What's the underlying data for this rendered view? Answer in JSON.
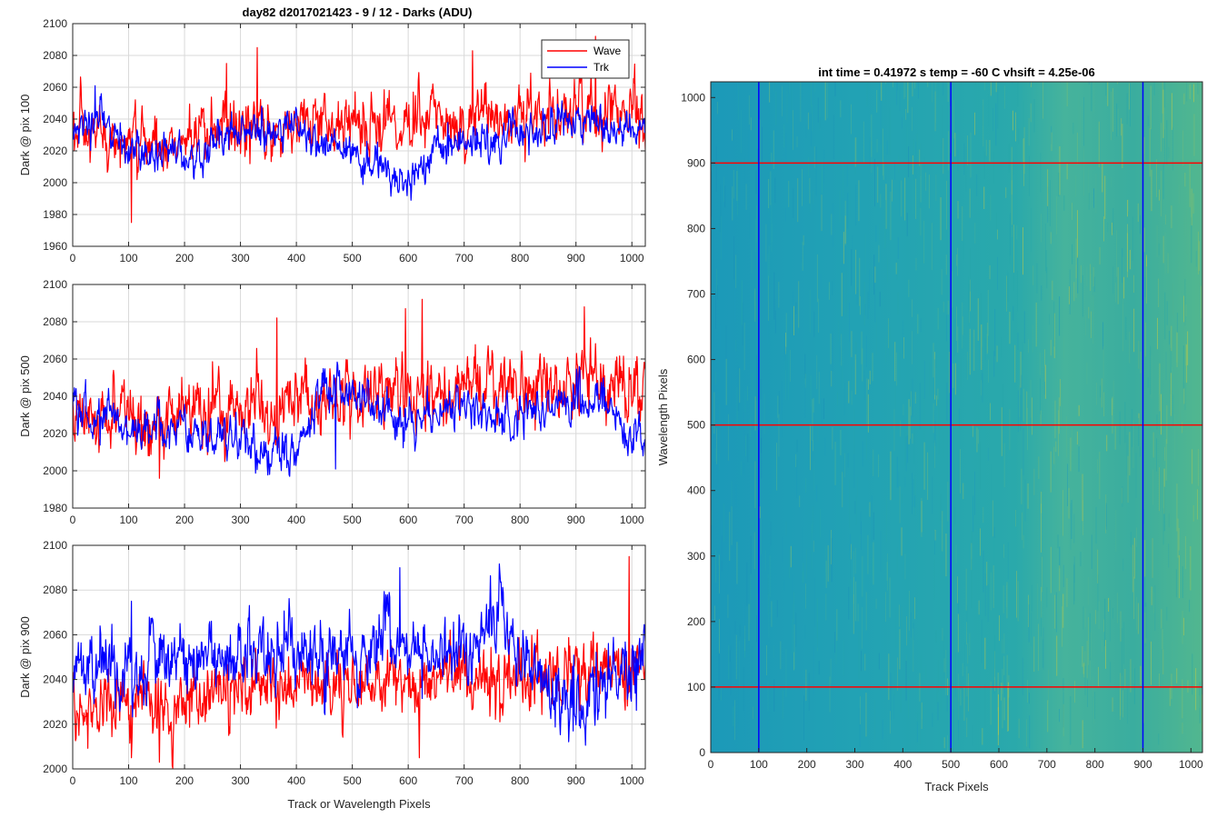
{
  "figure_title": "day82 d2017021423 - 9 / 12 - Darks (ADU)",
  "colors": {
    "wave": "#ff0000",
    "trk": "#0000ff",
    "grid": "#d9d9d9",
    "heat_low": "#1f9fb8",
    "heat_high": "#b9c94a"
  },
  "chart_data": [
    {
      "type": "line",
      "ylabel": "Dark @ pix 100",
      "xlabel": "",
      "xlim": [
        0,
        1024
      ],
      "ylim": [
        1960,
        2100
      ],
      "xticks": [
        0,
        100,
        200,
        300,
        400,
        500,
        600,
        700,
        800,
        900,
        1000
      ],
      "yticks": [
        1960,
        1980,
        2000,
        2020,
        2040,
        2060,
        2080,
        2100
      ],
      "grid": true,
      "legend": {
        "location": "top-right",
        "entries": [
          "Wave",
          "Trk"
        ]
      },
      "series": [
        {
          "name": "Wave",
          "color": "#ff0000",
          "trend": [
            [
              0,
              2028
            ],
            [
              100,
              2024
            ],
            [
              200,
              2027
            ],
            [
              300,
              2032
            ],
            [
              400,
              2036
            ],
            [
              500,
              2040
            ],
            [
              600,
              2037
            ],
            [
              700,
              2042
            ],
            [
              800,
              2041
            ],
            [
              900,
              2044
            ],
            [
              1024,
              2044
            ]
          ],
          "noise": 10,
          "extremes": [
            [
              105,
              1975
            ],
            [
              275,
              2075
            ],
            [
              330,
              2085
            ],
            [
              715,
              2083
            ],
            [
              935,
              2092
            ]
          ]
        },
        {
          "name": "Trk",
          "color": "#0000ff",
          "trend": [
            [
              0,
              2030
            ],
            [
              50,
              2040
            ],
            [
              100,
              2022
            ],
            [
              200,
              2015
            ],
            [
              270,
              2030
            ],
            [
              300,
              2034
            ],
            [
              350,
              2030
            ],
            [
              400,
              2034
            ],
            [
              450,
              2028
            ],
            [
              600,
              1996
            ],
            [
              650,
              2020
            ],
            [
              700,
              2030
            ],
            [
              750,
              2022
            ],
            [
              800,
              2032
            ],
            [
              900,
              2038
            ],
            [
              1024,
              2032
            ]
          ],
          "noise": 6,
          "extremes": [
            [
              40,
              2061
            ],
            [
              605,
              1989
            ]
          ]
        }
      ]
    },
    {
      "type": "line",
      "ylabel": "Dark @ pix 500",
      "xlabel": "",
      "xlim": [
        0,
        1024
      ],
      "ylim": [
        1980,
        2100
      ],
      "xticks": [
        0,
        100,
        200,
        300,
        400,
        500,
        600,
        700,
        800,
        900,
        1000
      ],
      "yticks": [
        1980,
        2000,
        2020,
        2040,
        2060,
        2080,
        2100
      ],
      "grid": true,
      "series": [
        {
          "name": "Wave",
          "color": "#ff0000",
          "trend": [
            [
              0,
              2030
            ],
            [
              100,
              2028
            ],
            [
              200,
              2031
            ],
            [
              300,
              2033
            ],
            [
              400,
              2036
            ],
            [
              500,
              2040
            ],
            [
              600,
              2040
            ],
            [
              700,
              2043
            ],
            [
              800,
              2043
            ],
            [
              900,
              2044
            ],
            [
              1024,
              2046
            ]
          ],
          "noise": 9,
          "extremes": [
            [
              155,
              1996
            ],
            [
              365,
              2082
            ],
            [
              595,
              2087
            ],
            [
              625,
              2092
            ],
            [
              915,
              2088
            ]
          ]
        },
        {
          "name": "Trk",
          "color": "#0000ff",
          "trend": [
            [
              0,
              2032
            ],
            [
              100,
              2024
            ],
            [
              200,
              2022
            ],
            [
              300,
              2016
            ],
            [
              400,
              2010
            ],
            [
              450,
              2045
            ],
            [
              500,
              2040
            ],
            [
              600,
              2030
            ],
            [
              700,
              2032
            ],
            [
              800,
              2028
            ],
            [
              900,
              2040
            ],
            [
              1024,
              2018
            ]
          ],
          "noise": 6,
          "extremes": [
            [
              470,
              2001
            ],
            [
              1020,
              2008
            ]
          ]
        }
      ]
    },
    {
      "type": "line",
      "ylabel": "Dark @ pix 900",
      "xlabel": "Track or Wavelength Pixels",
      "xlim": [
        0,
        1024
      ],
      "ylim": [
        2000,
        2100
      ],
      "xticks": [
        0,
        100,
        200,
        300,
        400,
        500,
        600,
        700,
        800,
        900,
        1000
      ],
      "yticks": [
        2000,
        2020,
        2040,
        2060,
        2080,
        2100
      ],
      "grid": true,
      "series": [
        {
          "name": "Wave",
          "color": "#ff0000",
          "trend": [
            [
              0,
              2030
            ],
            [
              100,
              2028
            ],
            [
              200,
              2030
            ],
            [
              300,
              2034
            ],
            [
              400,
              2036
            ],
            [
              500,
              2038
            ],
            [
              600,
              2040
            ],
            [
              700,
              2040
            ],
            [
              800,
              2040
            ],
            [
              900,
              2042
            ],
            [
              1024,
              2044
            ]
          ],
          "noise": 8,
          "extremes": [
            [
              105,
              2005
            ],
            [
              155,
              2003
            ],
            [
              620,
              2005
            ],
            [
              995,
              2095
            ]
          ]
        },
        {
          "name": "Trk",
          "color": "#0000ff",
          "trend": [
            [
              0,
              2044
            ],
            [
              100,
              2048
            ],
            [
              200,
              2050
            ],
            [
              300,
              2050
            ],
            [
              400,
              2052
            ],
            [
              500,
              2050
            ],
            [
              600,
              2055
            ],
            [
              700,
              2052
            ],
            [
              760,
              2068
            ],
            [
              800,
              2048
            ],
            [
              900,
              2030
            ],
            [
              1024,
              2050
            ]
          ],
          "noise": 8,
          "extremes": [
            [
              105,
              2075
            ],
            [
              585,
              2090
            ],
            [
              770,
              2079
            ],
            [
              895,
              2017
            ]
          ]
        }
      ]
    },
    {
      "type": "heatmap",
      "title": "int time = 0.41972 s    temp = -60 C    vhsift = 4.25e-06",
      "xlabel": "Track Pixels",
      "ylabel": "Wavelength Pixels",
      "xlim": [
        0,
        1024
      ],
      "ylim": [
        0,
        1024
      ],
      "xticks": [
        0,
        100,
        200,
        300,
        400,
        500,
        600,
        700,
        800,
        900,
        1000
      ],
      "yticks": [
        0,
        100,
        200,
        300,
        400,
        500,
        600,
        700,
        800,
        900,
        1000
      ],
      "vertical_markers": {
        "color": "#0000ff",
        "x": [
          100,
          500,
          900
        ]
      },
      "horizontal_markers": {
        "color": "#ff0000",
        "y": [
          100,
          500,
          900
        ]
      }
    }
  ]
}
